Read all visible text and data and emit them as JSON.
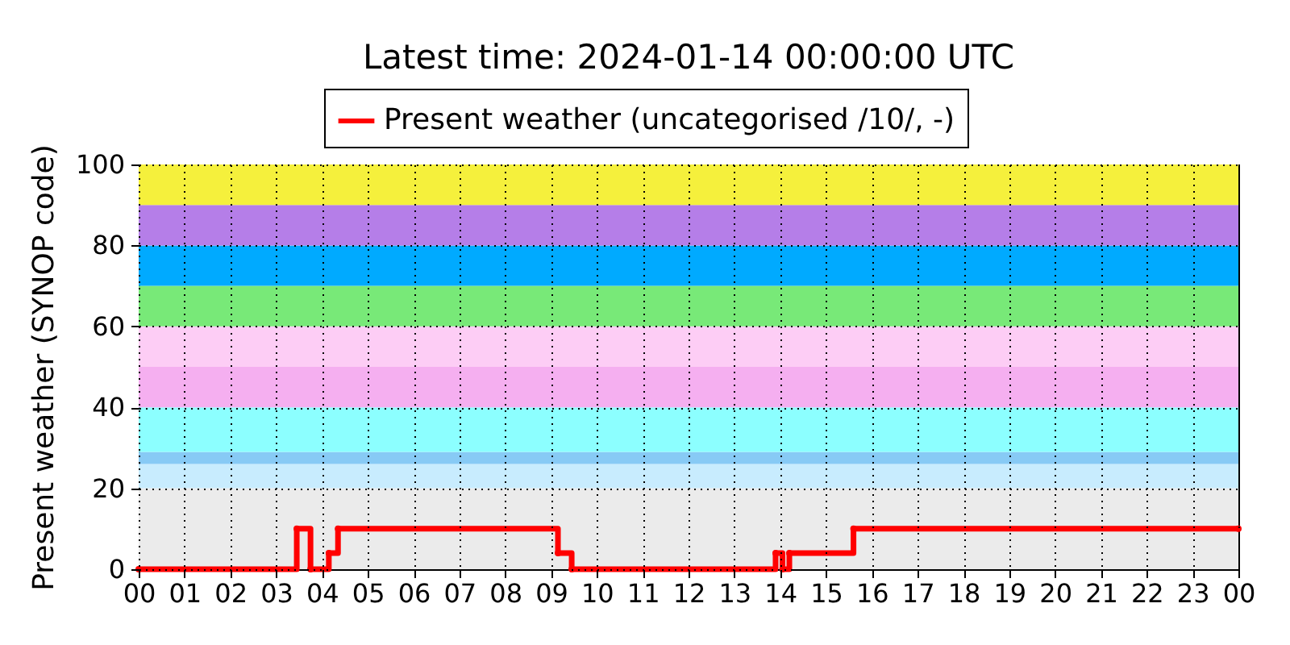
{
  "chart_data": {
    "type": "step",
    "title": "Latest time: 2024-01-14 00:00:00 UTC",
    "ylabel": "Present weather (SYNOP code)",
    "x": [
      0,
      3.45,
      3.75,
      4.15,
      4.35,
      9.15,
      9.45,
      13.9,
      14.05,
      14.2,
      15.6,
      24
    ],
    "series": [
      {
        "name": "Present weather (uncategorised /10/, -)",
        "color": "#ff0000",
        "values": [
          0,
          10,
          0,
          4,
          10,
          4,
          0,
          4,
          0,
          4,
          10,
          10
        ]
      }
    ],
    "xlim": [
      0,
      24
    ],
    "xticks": [
      {
        "value": 0,
        "label": "00"
      },
      {
        "value": 1,
        "label": "01"
      },
      {
        "value": 2,
        "label": "02"
      },
      {
        "value": 3,
        "label": "03"
      },
      {
        "value": 4,
        "label": "04"
      },
      {
        "value": 5,
        "label": "05"
      },
      {
        "value": 6,
        "label": "06"
      },
      {
        "value": 7,
        "label": "07"
      },
      {
        "value": 8,
        "label": "08"
      },
      {
        "value": 9,
        "label": "09"
      },
      10,
      11,
      12,
      13,
      14,
      15,
      16,
      17,
      18,
      19,
      20,
      21,
      22,
      23,
      {
        "value": 24,
        "label": "00"
      }
    ],
    "ylim": [
      0,
      100
    ],
    "yticks": [
      0,
      20,
      40,
      60,
      80,
      100
    ],
    "bands": [
      {
        "axis": "y",
        "from": 0,
        "to": 20,
        "color": "#ebebeb"
      },
      {
        "axis": "y",
        "from": 20,
        "to": 26,
        "color": "#c8ecfe"
      },
      {
        "axis": "y",
        "from": 26,
        "to": 29,
        "color": "#87caf5"
      },
      {
        "axis": "y",
        "from": 29,
        "to": 40,
        "color": "#8cffff"
      },
      {
        "axis": "y",
        "from": 40,
        "to": 50,
        "color": "#f5aff0"
      },
      {
        "axis": "y",
        "from": 50,
        "to": 60,
        "color": "#fdcdf5"
      },
      {
        "axis": "y",
        "from": 60,
        "to": 70,
        "color": "#78e978"
      },
      {
        "axis": "y",
        "from": 70,
        "to": 80,
        "color": "#00aaff"
      },
      {
        "axis": "y",
        "from": 80,
        "to": 90,
        "color": "#b57ee8"
      },
      {
        "axis": "y",
        "from": 90,
        "to": 100,
        "color": "#f5f03c"
      }
    ],
    "grid": true,
    "legend": "top",
    "marker": "circle",
    "line_style": "solid"
  }
}
